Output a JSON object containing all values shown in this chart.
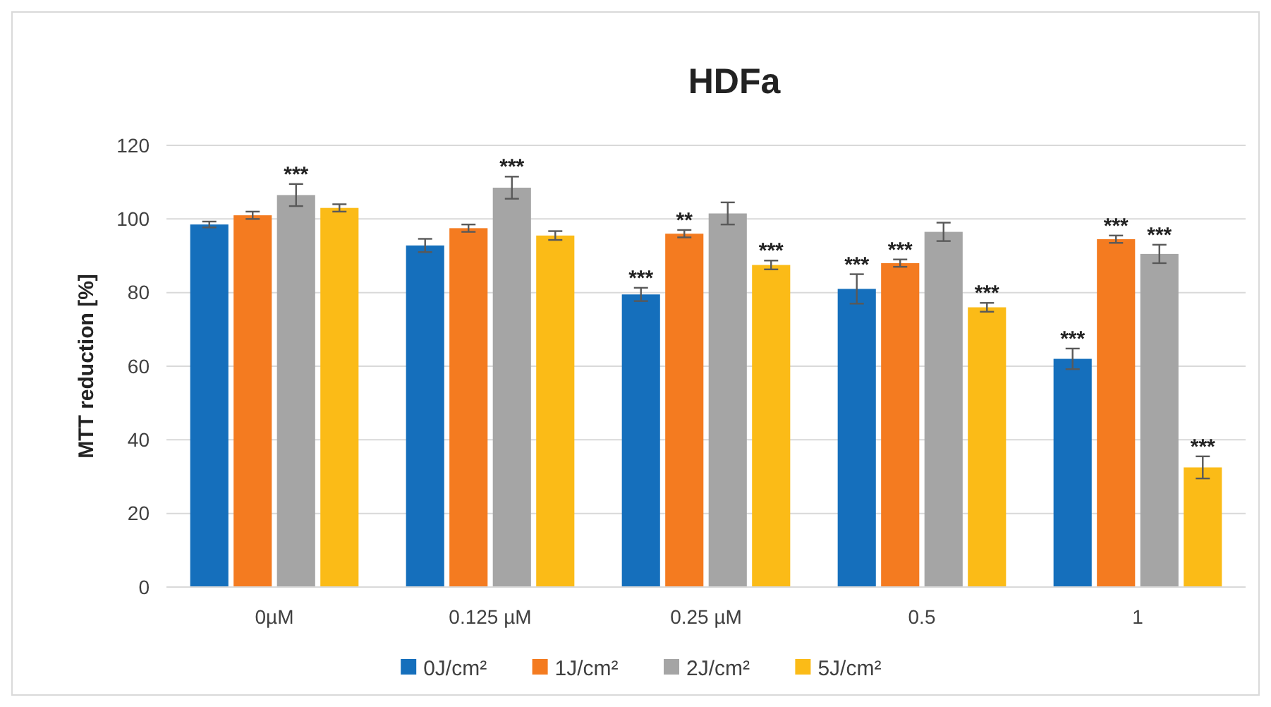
{
  "chart_data": {
    "type": "bar",
    "title": "HDFa",
    "ylabel": "MTT reduction [%]",
    "categories": [
      "0µM",
      "0.125 µM",
      "0.25 µM",
      "0.5",
      "1"
    ],
    "series": [
      {
        "name": "0J/cm²",
        "color": "#156fbc",
        "values": [
          98.5,
          92.8,
          79.5,
          81,
          62
        ],
        "errors": [
          0.8,
          1.8,
          1.8,
          4,
          2.8
        ],
        "value_labels": [
          null,
          null,
          "***",
          "***",
          "***"
        ]
      },
      {
        "name": "1J/cm²",
        "color": "#f47b20",
        "values": [
          101,
          97.5,
          96,
          88,
          94.5
        ],
        "errors": [
          1,
          1,
          1,
          1,
          1
        ],
        "value_labels": [
          null,
          null,
          "**",
          "***",
          "***"
        ]
      },
      {
        "name": "2J/cm²",
        "color": "#a5a5a5",
        "values": [
          106.5,
          108.5,
          101.5,
          96.5,
          90.5
        ],
        "errors": [
          3,
          3,
          3,
          2.5,
          2.5
        ],
        "value_labels": [
          "***",
          "***",
          null,
          null,
          "***"
        ]
      },
      {
        "name": "5J/cm²",
        "color": "#fbbb17",
        "values": [
          103,
          95.5,
          87.5,
          76,
          32.5
        ],
        "errors": [
          1,
          1.2,
          1.2,
          1.2,
          3
        ],
        "value_labels": [
          null,
          null,
          "***",
          "***",
          "***"
        ]
      }
    ],
    "ylim": [
      0,
      120
    ],
    "yticks": [
      0,
      20,
      40,
      60,
      80,
      100,
      120
    ],
    "grid": "y",
    "legend": "bottom"
  }
}
